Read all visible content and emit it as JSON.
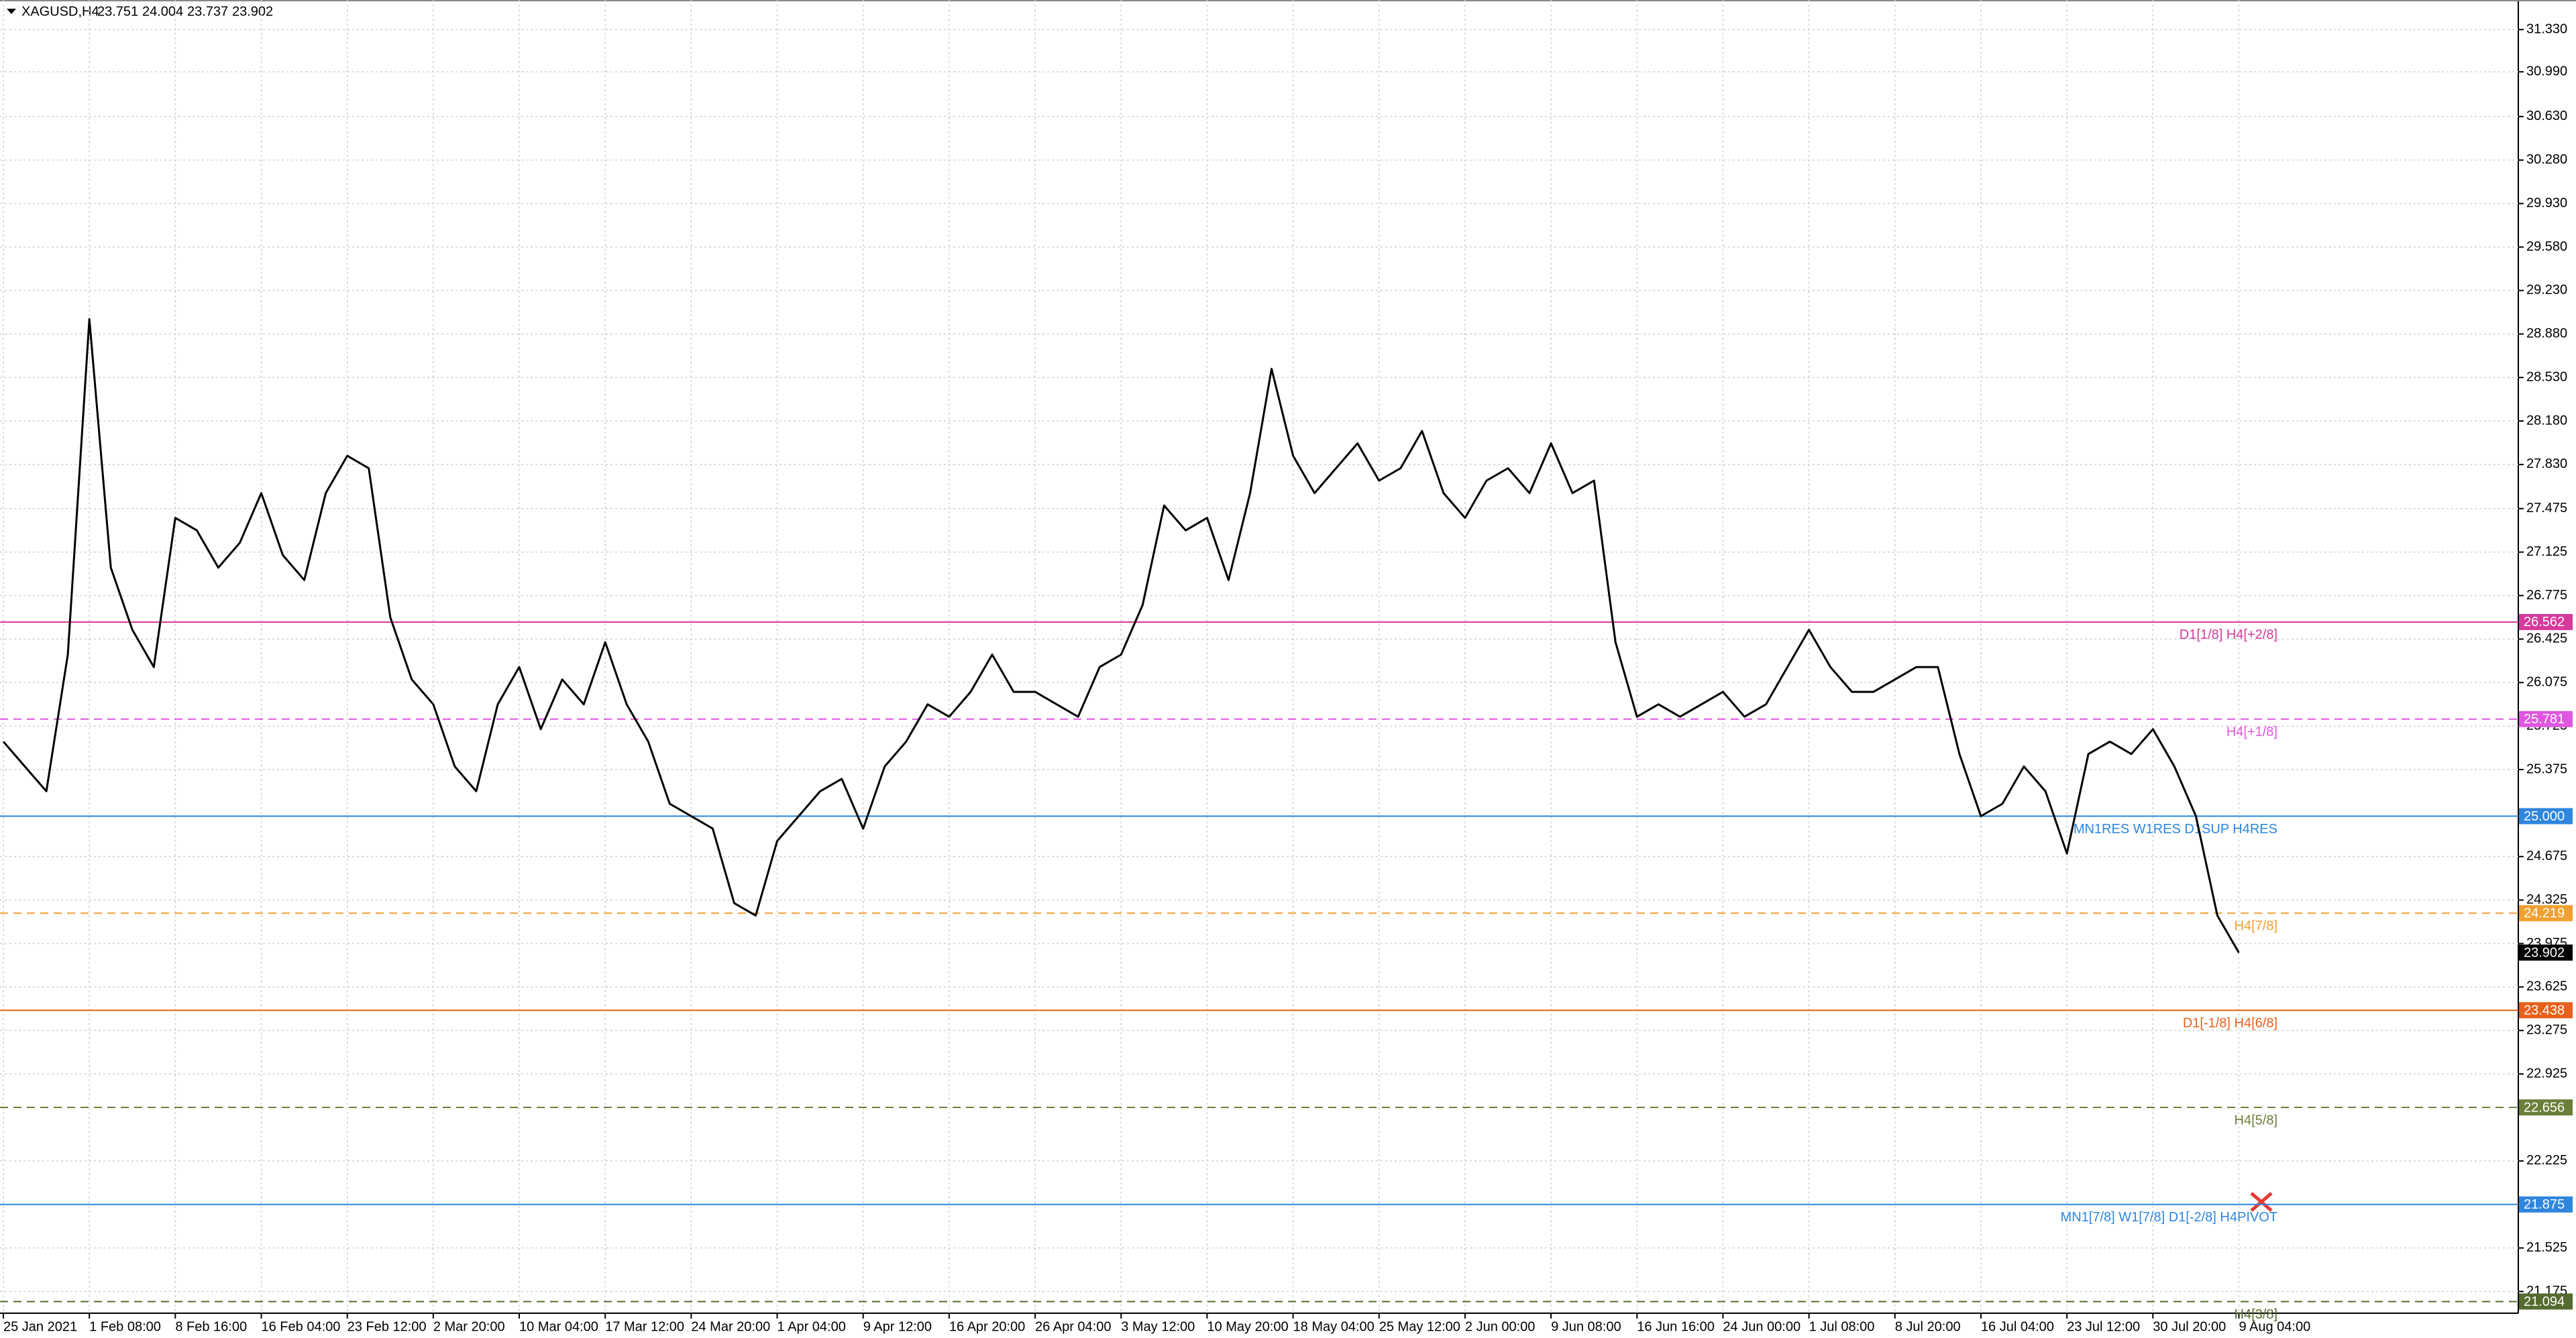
{
  "chart_data": {
    "type": "line",
    "quote": {
      "symbol": "XAGUSD,H4",
      "open": 23.751,
      "high": 24.004,
      "low": 23.737,
      "close": 23.902
    },
    "categories": [
      "25 Jan 2021",
      null,
      null,
      null,
      "1 Feb 08:00",
      null,
      null,
      null,
      "8 Feb 16:00",
      null,
      null,
      null,
      "16 Feb 04:00",
      null,
      null,
      null,
      "23 Feb 12:00",
      null,
      null,
      null,
      "2 Mar 20:00",
      null,
      null,
      null,
      "10 Mar 04:00",
      null,
      null,
      null,
      "17 Mar 12:00",
      null,
      null,
      null,
      "24 Mar 20:00",
      null,
      null,
      null,
      "1 Apr 04:00",
      null,
      null,
      null,
      "9 Apr 12:00",
      null,
      null,
      null,
      "16 Apr 20:00",
      null,
      null,
      null,
      "26 Apr 04:00",
      null,
      null,
      null,
      "3 May 12:00",
      null,
      null,
      null,
      "10 May 20:00",
      null,
      null,
      null,
      "18 May 04:00",
      null,
      null,
      null,
      "25 May 12:00",
      null,
      null,
      null,
      "2 Jun 00:00",
      null,
      null,
      null,
      "9 Jun 08:00",
      null,
      null,
      null,
      "16 Jun 16:00",
      null,
      null,
      null,
      "24 Jun 00:00",
      null,
      null,
      null,
      "1 Jul 08:00",
      null,
      null,
      null,
      "8 Jul 20:00",
      null,
      null,
      null,
      "16 Jul 04:00",
      null,
      null,
      null,
      "23 Jul 12:00",
      null,
      null,
      null,
      "30 Jul 20:00",
      null,
      null,
      null,
      "9 Aug 04:00"
    ],
    "series": [
      {
        "color": "#000000",
        "values": [
          25.6,
          25.4,
          25.2,
          26.3,
          29.0,
          27.0,
          26.5,
          26.2,
          27.4,
          27.3,
          27.0,
          27.2,
          27.6,
          27.1,
          26.9,
          27.6,
          27.9,
          27.8,
          26.6,
          26.1,
          25.9,
          25.4,
          25.2,
          25.9,
          26.2,
          25.7,
          26.1,
          25.9,
          26.4,
          25.9,
          25.6,
          25.1,
          25.0,
          24.9,
          24.3,
          24.2,
          24.8,
          25.0,
          25.2,
          25.3,
          24.9,
          25.4,
          25.6,
          25.9,
          25.8,
          26.0,
          26.3,
          26.0,
          26.0,
          25.9,
          25.8,
          26.2,
          26.3,
          26.7,
          27.5,
          27.3,
          27.4,
          26.9,
          27.6,
          28.6,
          27.9,
          27.6,
          27.8,
          28.0,
          27.7,
          27.8,
          28.1,
          27.6,
          27.4,
          27.7,
          27.8,
          27.6,
          28.0,
          27.6,
          27.7,
          26.4,
          25.8,
          25.9,
          25.8,
          25.9,
          26.0,
          25.8,
          25.9,
          26.2,
          26.5,
          26.2,
          26.0,
          26.0,
          26.1,
          26.2,
          26.2,
          25.5,
          25.0,
          25.1,
          25.4,
          25.2,
          24.7,
          25.5,
          25.6,
          25.5,
          25.7,
          25.4,
          25.0,
          24.2,
          23.902
        ]
      }
    ],
    "ylim": [
      21.0,
      31.568
    ],
    "yticks": [
      {
        "value": 31.33,
        "label": "31.330"
      },
      {
        "value": 30.99,
        "label": "30.990"
      },
      {
        "value": 30.63,
        "label": "30.630"
      },
      {
        "value": 30.28,
        "label": "30.280"
      },
      {
        "value": 29.93,
        "label": "29.930"
      },
      {
        "value": 29.58,
        "label": "29.580"
      },
      {
        "value": 29.23,
        "label": "29.230"
      },
      {
        "value": 28.88,
        "label": "28.880"
      },
      {
        "value": 28.53,
        "label": "28.530"
      },
      {
        "value": 28.18,
        "label": "28.180"
      },
      {
        "value": 27.83,
        "label": "27.830"
      },
      27.475,
      27.125,
      26.775,
      26.425,
      26.075,
      25.725,
      25.375,
      24.675,
      24.325,
      23.975,
      23.625,
      23.275,
      22.925,
      22.225,
      21.525,
      21.175
    ],
    "grid": true,
    "last_price": 23.902,
    "levels": [
      {
        "value": 26.562,
        "label": "D1[1/8] H4[+2/8]",
        "color": "#d63a9c",
        "dashed": false
      },
      {
        "value": 25.781,
        "label": "H4[+1/8]",
        "color": "#e056e0",
        "dashed": true
      },
      {
        "value": {
          "value": 25,
          "label": "25.000"
        },
        "label": "MN1RES W1RES D1SUP H4RES",
        "color": "#2e86de",
        "dashed": false
      },
      {
        "value": 24.219,
        "label": "H4[7/8]",
        "color": "#f0a030",
        "dashed": true
      },
      {
        "value": 23.438,
        "label": "D1[-1/8] H4[6/8]",
        "color": "#e8601c",
        "dashed": false
      },
      {
        "value": 22.656,
        "label": "H4[5/8]",
        "color": "#6b7f3a",
        "dashed": true
      },
      {
        "value": 21.875,
        "label": "MN1[7/8] W1[7/8] D1[-2/8] H4PIVOT",
        "color": "#2e86de",
        "dashed": false
      },
      {
        "value": 21.094,
        "label": "H4[3/8]",
        "color": "#556b2f",
        "dashed": true
      }
    ]
  }
}
